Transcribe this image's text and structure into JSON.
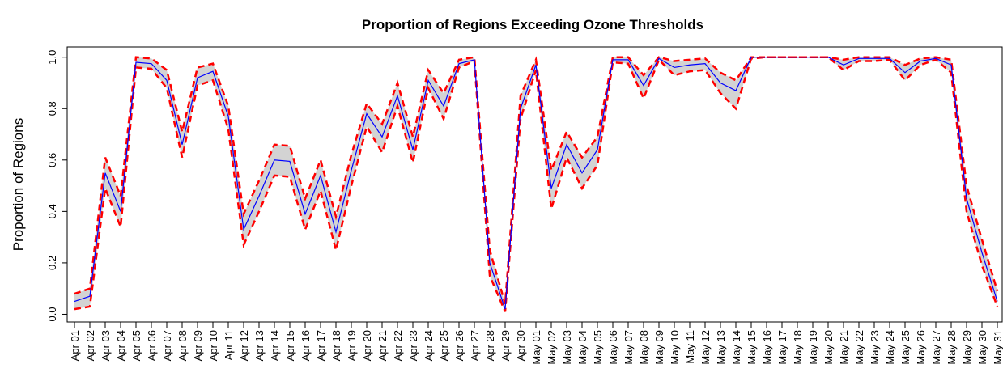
{
  "chart_data": {
    "type": "line",
    "title": "Proportion of Regions Exceeding Ozone Thresholds",
    "ylabel": "Proportion of Regions",
    "categories": [
      "Apr 01",
      "Apr 02",
      "Apr 03",
      "Apr 04",
      "Apr 05",
      "Apr 06",
      "Apr 07",
      "Apr 08",
      "Apr 09",
      "Apr 10",
      "Apr 11",
      "Apr 12",
      "Apr 13",
      "Apr 14",
      "Apr 15",
      "Apr 16",
      "Apr 17",
      "Apr 18",
      "Apr 19",
      "Apr 20",
      "Apr 21",
      "Apr 22",
      "Apr 23",
      "Apr 24",
      "Apr 25",
      "Apr 26",
      "Apr 27",
      "Apr 28",
      "Apr 29",
      "Apr 30",
      "May 01",
      "May 02",
      "May 03",
      "May 04",
      "May 05",
      "May 06",
      "May 07",
      "May 08",
      "May 09",
      "May 10",
      "May 11",
      "May 12",
      "May 13",
      "May 14",
      "May 15",
      "May 16",
      "May 17",
      "May 18",
      "May 19",
      "May 20",
      "May 21",
      "May 22",
      "May 23",
      "May 24",
      "May 25",
      "May 26",
      "May 27",
      "May 28",
      "May 29",
      "May 30",
      "May 31"
    ],
    "values": [
      0.05,
      0.07,
      0.55,
      0.4,
      0.98,
      0.975,
      0.91,
      0.66,
      0.92,
      0.945,
      0.77,
      0.33,
      0.46,
      0.6,
      0.595,
      0.39,
      0.54,
      0.32,
      0.56,
      0.78,
      0.69,
      0.85,
      0.64,
      0.91,
      0.81,
      0.975,
      0.99,
      0.2,
      0.02,
      0.8,
      0.97,
      0.49,
      0.66,
      0.55,
      0.64,
      0.99,
      0.99,
      0.89,
      0.995,
      0.96,
      0.97,
      0.975,
      0.9,
      0.87,
      1.0,
      1.0,
      1.0,
      1.0,
      1.0,
      1.0,
      0.97,
      0.995,
      0.995,
      0.995,
      0.94,
      0.985,
      0.995,
      0.97,
      0.45,
      0.24,
      0.05
    ],
    "lower": [
      0.02,
      0.03,
      0.49,
      0.34,
      0.96,
      0.955,
      0.88,
      0.61,
      0.89,
      0.91,
      0.72,
      0.27,
      0.4,
      0.54,
      0.535,
      0.33,
      0.48,
      0.25,
      0.5,
      0.73,
      0.63,
      0.81,
      0.59,
      0.88,
      0.76,
      0.96,
      0.985,
      0.15,
      0.01,
      0.76,
      0.95,
      0.41,
      0.61,
      0.49,
      0.58,
      0.98,
      0.975,
      0.84,
      0.99,
      0.93,
      0.945,
      0.95,
      0.86,
      0.8,
      0.995,
      1.0,
      1.0,
      1.0,
      1.0,
      1.0,
      0.95,
      0.985,
      0.985,
      0.99,
      0.91,
      0.97,
      0.99,
      0.94,
      0.4,
      0.19,
      0.03
    ],
    "upper": [
      0.08,
      0.1,
      0.61,
      0.46,
      1.0,
      0.995,
      0.95,
      0.71,
      0.96,
      0.975,
      0.81,
      0.39,
      0.52,
      0.66,
      0.655,
      0.45,
      0.6,
      0.38,
      0.62,
      0.82,
      0.74,
      0.9,
      0.69,
      0.95,
      0.86,
      0.99,
      1.0,
      0.25,
      0.04,
      0.85,
      0.99,
      0.56,
      0.71,
      0.61,
      0.69,
      1.0,
      1.0,
      0.93,
      1.0,
      0.985,
      0.99,
      0.995,
      0.94,
      0.91,
      1.0,
      1.0,
      1.0,
      1.0,
      1.0,
      1.0,
      0.99,
      1.0,
      1.0,
      1.0,
      0.97,
      0.995,
      1.0,
      0.99,
      0.5,
      0.29,
      0.09
    ],
    "color": "#0000ff",
    "bound_color": "#ff0000",
    "band_color": "#d3d3d3",
    "ylim": [
      -0.03,
      1.04
    ],
    "yticks": [
      {
        "value": 0,
        "label": "0.0"
      },
      {
        "value": 0.2,
        "label": "0.2"
      },
      {
        "value": 0.4,
        "label": "0.4"
      },
      {
        "value": 0.6,
        "label": "0.6"
      },
      {
        "value": 0.8,
        "label": "0.8"
      },
      {
        "value": 1,
        "label": "1.0"
      }
    ]
  }
}
